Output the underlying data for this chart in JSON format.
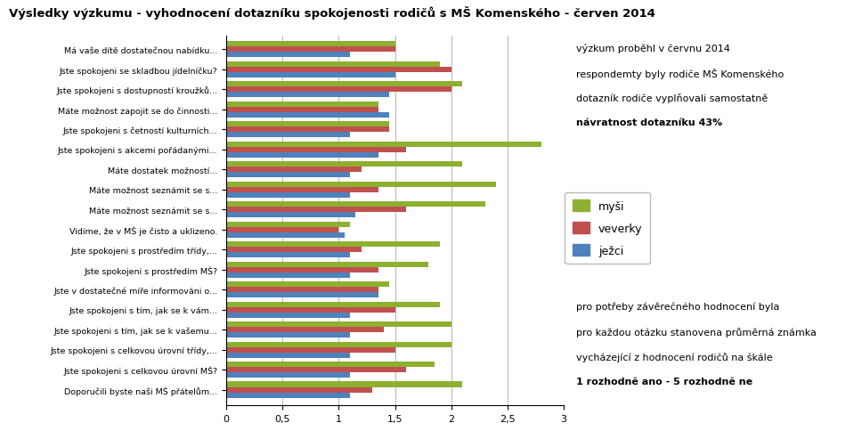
{
  "title": "Výsledky výzkumu - vyhodnocení dotazníku spokojenosti rodičů s MŠ Komenského - červen 2014",
  "categories": [
    "Má vaše dítě dostatečnou nabídku...",
    "Jste spokojeni se skladbou jídelníčku?",
    "Jste spokojeni s dostupností kroužků...",
    "Máte možnost zapojit se do činnosti...",
    "Jste spokojeni s četností kulturních...",
    "Jste spokojeni s akcemi pořádanými...",
    "Máte dostatek možností...",
    "Máte možnost seznámit se s...",
    "Máte možnost seznámit se s...",
    "Vidíme, že v MŠ je čisto a uklizeno.",
    "Jste spokojeni s prostředím třídy,...",
    "Jste spokojeni s prostředím MŠ?",
    "Jste v dostatečné míře informováni o...",
    "Jste spokojeni s tím, jak se k vám...",
    "Jste spokojeni s tím, jak se k vašemu...",
    "Jste spokojeni s celkovou úrovní třídy,...",
    "Jste spokojeni s celkovou úrovní MŠ?",
    "Doporučili byste naši MŠ přátelům..."
  ],
  "mysi": [
    1.5,
    1.9,
    2.1,
    1.35,
    1.45,
    2.8,
    2.1,
    2.4,
    2.3,
    1.1,
    1.9,
    1.8,
    1.45,
    1.9,
    2.0,
    2.0,
    1.85,
    2.1
  ],
  "veverky": [
    1.5,
    2.0,
    2.0,
    1.35,
    1.45,
    1.6,
    1.2,
    1.35,
    1.6,
    1.0,
    1.2,
    1.35,
    1.35,
    1.5,
    1.4,
    1.5,
    1.6,
    1.3
  ],
  "jezci": [
    1.1,
    1.5,
    1.45,
    1.45,
    1.1,
    1.35,
    1.1,
    1.1,
    1.15,
    1.05,
    1.1,
    1.1,
    1.35,
    1.1,
    1.1,
    1.1,
    1.1,
    1.1
  ],
  "color_mysi": "#8DB030",
  "color_veverky": "#C0504D",
  "color_jezci": "#4F81BD",
  "xlim": [
    0,
    3
  ],
  "xticks": [
    0,
    0.5,
    1,
    1.5,
    2,
    2.5,
    3
  ],
  "xtick_labels": [
    "0",
    "0,5",
    "1",
    "1,5",
    "2",
    "2,5",
    "3"
  ],
  "text_right_top_lines": [
    "výzkum proběhl v červnu 2014",
    "respondemty byly rodiče MŠ Komenského",
    "dotazník rodiče vyplňovali samostatně",
    "návratnost dotazníku 43%"
  ],
  "text_right_bottom_lines": [
    "pro potřeby závěrečného hodnocení byla",
    "pro každou otázku stanovena průměrná známka",
    "vycházející z hodnocení rodičů na škále",
    "1 rozhodně ano - 5 rozhodně ne"
  ]
}
